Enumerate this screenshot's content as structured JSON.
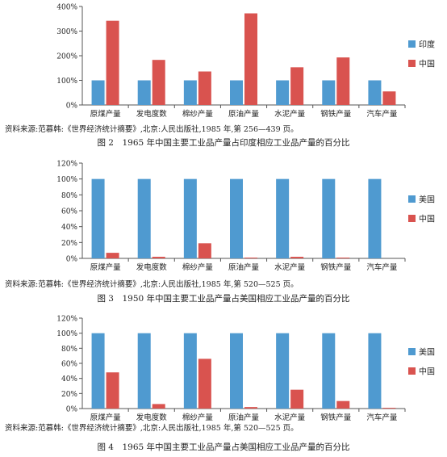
{
  "chart_data": [
    {
      "type": "bar",
      "categories": [
        "原煤产量",
        "发电度数",
        "棉纱产量",
        "原油产量",
        "水泥产量",
        "钢铁产量",
        "汽车产量"
      ],
      "series": [
        {
          "name": "印度",
          "values": [
            100,
            100,
            100,
            100,
            100,
            100,
            100
          ]
        },
        {
          "name": "中国",
          "values": [
            342,
            183,
            136,
            372,
            153,
            193,
            55
          ]
        }
      ],
      "yticks": [
        "0%",
        "100%",
        "200%",
        "300%",
        "400%"
      ],
      "ylim": [
        0,
        400
      ],
      "grid": false,
      "legend": "right",
      "colors": [
        "#4f9ad0",
        "#d9534f"
      ],
      "source": "资料来源:范慕韩:《世界经济统计摘要》,北京:人民出版社,1985 年,第 256—439 页。",
      "caption": "图 2　1965 年中国主要工业品产量占印度相应工业品产量的百分比"
    },
    {
      "type": "bar",
      "categories": [
        "原煤产量",
        "发电度数",
        "棉纱产量",
        "原油产量",
        "水泥产量",
        "钢铁产量",
        "汽车产量"
      ],
      "series": [
        {
          "name": "美国",
          "values": [
            100,
            100,
            100,
            100,
            100,
            100,
            100
          ]
        },
        {
          "name": "中国",
          "values": [
            7,
            2,
            19,
            1,
            2,
            1,
            0
          ]
        }
      ],
      "yticks": [
        "0%",
        "20%",
        "40%",
        "60%",
        "80%",
        "100%",
        "120%"
      ],
      "ylim": [
        0,
        120
      ],
      "grid": false,
      "legend": "right",
      "colors": [
        "#4f9ad0",
        "#d9534f"
      ],
      "source": "资料来源:范慕韩:《世界经济统计摘要》,北京:人民出版社,1985 年,第 520—525 页。",
      "caption": "图 3　1950 年中国主要工业品产量占美国相应工业品产量的百分比"
    },
    {
      "type": "bar",
      "categories": [
        "原煤产量",
        "发电度数",
        "棉纱产量",
        "原油产量",
        "水泥产量",
        "钢铁产量",
        "汽车产量"
      ],
      "series": [
        {
          "name": "美国",
          "values": [
            100,
            100,
            100,
            100,
            100,
            100,
            100
          ]
        },
        {
          "name": "中国",
          "values": [
            48,
            6,
            66,
            2,
            25,
            10,
            1
          ]
        }
      ],
      "yticks": [
        "0%",
        "20%",
        "40%",
        "60%",
        "80%",
        "100%",
        "120%"
      ],
      "ylim": [
        0,
        120
      ],
      "grid": false,
      "legend": "right",
      "colors": [
        "#4f9ad0",
        "#d9534f"
      ],
      "source": "资料来源:范慕韩:《世界经济统计摘要》,北京:人民出版社,1985 年,第 520—525 页。",
      "caption": "图 4　1965 年中国主要工业品产量占美国相应工业品产量的百分比"
    }
  ]
}
